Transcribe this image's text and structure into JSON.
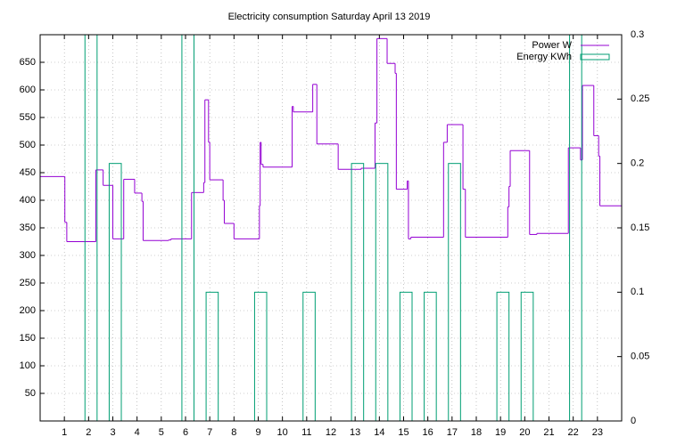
{
  "chart_data": {
    "type": "line",
    "title": "Electricity consumption Saturday April 13 2019",
    "xlim": [
      0,
      24
    ],
    "xticks": [
      1,
      2,
      3,
      4,
      5,
      6,
      7,
      8,
      9,
      10,
      11,
      12,
      13,
      14,
      15,
      16,
      17,
      18,
      19,
      20,
      21,
      22,
      23
    ],
    "ylim": [
      0,
      700
    ],
    "yticks": [
      50,
      100,
      150,
      200,
      250,
      300,
      350,
      400,
      450,
      500,
      550,
      600,
      650
    ],
    "y2lim": [
      0,
      0.3
    ],
    "y2ticks": [
      0,
      0.05,
      0.1,
      0.15,
      0.2,
      0.25,
      0.3
    ],
    "grid": true,
    "legend": "top-right",
    "series": [
      {
        "name": "Power W",
        "color": "#9400d3",
        "style": "steps",
        "x": [
          0,
          1.02,
          1.1,
          2.3,
          2.6,
          3.0,
          3.45,
          3.9,
          4.2,
          4.25,
          5.3,
          5.4,
          6.25,
          6.75,
          6.8,
          6.95,
          7.0,
          7.55,
          7.6,
          8.0,
          9.05,
          9.08,
          9.12,
          9.2,
          10.4,
          10.45,
          11.25,
          11.42,
          12.3,
          13.25,
          13.82,
          13.9,
          14.32,
          14.65,
          14.7,
          15.15,
          15.2,
          15.3,
          16.65,
          16.8,
          17.45,
          17.55,
          19.3,
          19.35,
          19.4,
          20.2,
          20.5,
          21.8,
          22.3,
          22.38,
          22.85,
          23.05,
          23.1,
          24
        ],
        "values": [
          443,
          360,
          325,
          455,
          427,
          330,
          438,
          413,
          398,
          327,
          328,
          330,
          414,
          432,
          582,
          505,
          437,
          400,
          358,
          330,
          390,
          505,
          465,
          460,
          570,
          560,
          610,
          502,
          456,
          458,
          540,
          693,
          648,
          630,
          420,
          435,
          330,
          333,
          505,
          537,
          420,
          333,
          388,
          425,
          490,
          338,
          340,
          495,
          473,
          608,
          517,
          480,
          390,
          390
        ]
      },
      {
        "name": "Energy KWh",
        "color": "#009e73",
        "style": "boxes",
        "axis": "y2",
        "x": [
          2.1,
          3.1,
          6.1,
          7.1,
          9.1,
          11.1,
          13.1,
          14.1,
          15.1,
          16.1,
          17.1,
          19.1,
          20.1,
          22.1
        ],
        "values": [
          0.3,
          0.2,
          0.3,
          0.1,
          0.1,
          0.1,
          0.2,
          0.2,
          0.1,
          0.1,
          0.2,
          0.1,
          0.1,
          0.3
        ]
      }
    ]
  }
}
